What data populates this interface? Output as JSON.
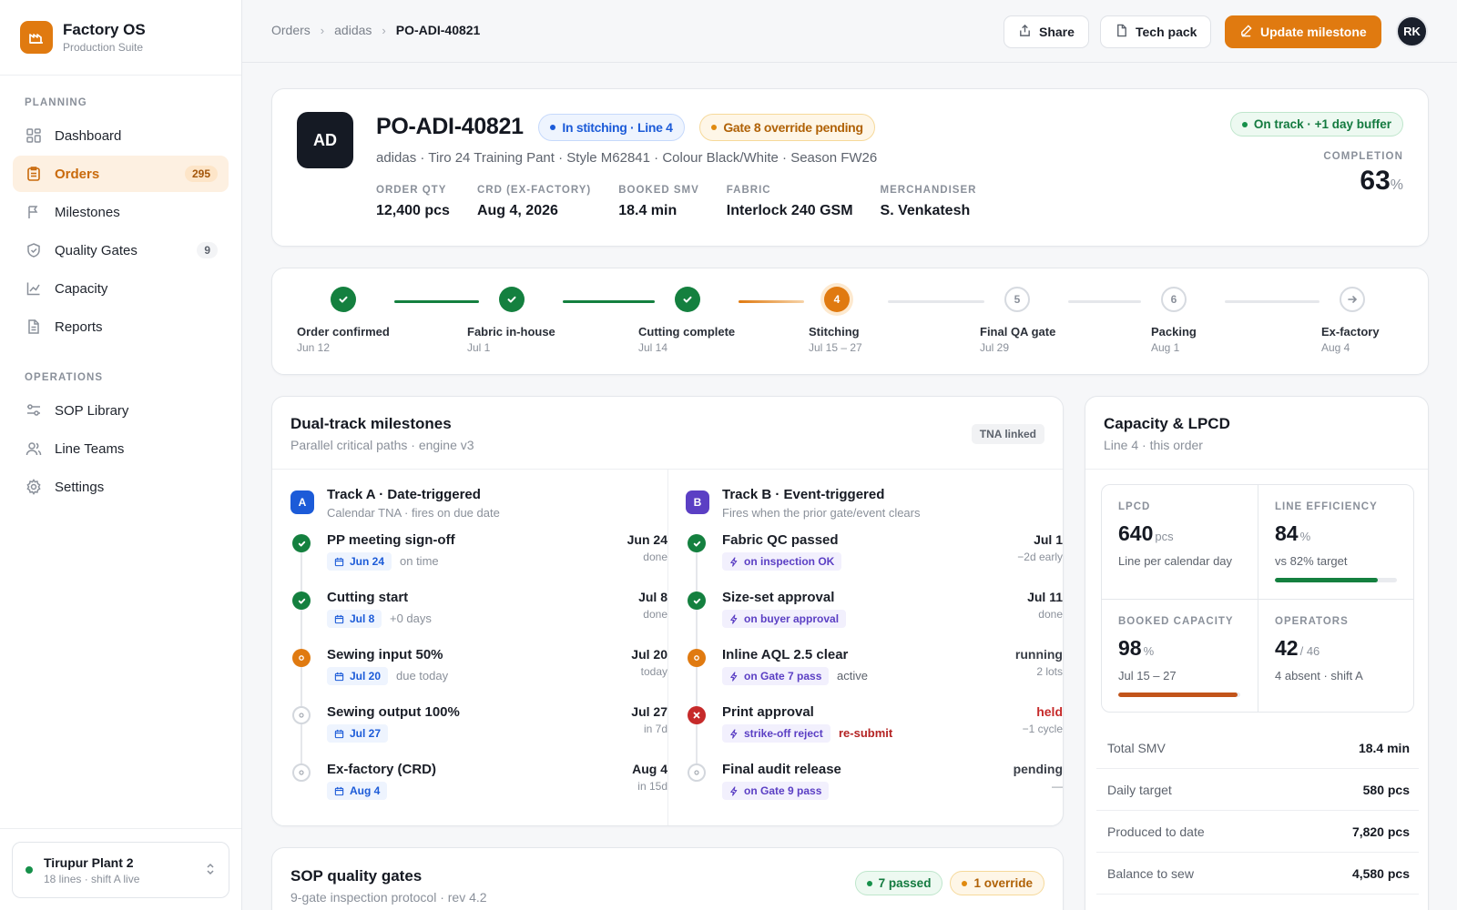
{
  "brand": {
    "name": "Factory OS",
    "subtitle": "Production Suite"
  },
  "sidebar": {
    "sections": [
      {
        "label": "PLANNING"
      },
      {
        "label": "OPERATIONS"
      }
    ],
    "planning": [
      {
        "label": "Dashboard",
        "icon": "grid-icon"
      },
      {
        "label": "Orders",
        "icon": "clipboard-icon",
        "badge": "295",
        "active": true
      },
      {
        "label": "Milestones",
        "icon": "flag-icon"
      },
      {
        "label": "Quality Gates",
        "icon": "shield-icon",
        "badge": "9"
      },
      {
        "label": "Capacity",
        "icon": "chart-icon"
      },
      {
        "label": "Reports",
        "icon": "document-icon"
      }
    ],
    "operations": [
      {
        "label": "SOP Library",
        "icon": "sliders-icon"
      },
      {
        "label": "Line Teams",
        "icon": "users-icon"
      },
      {
        "label": "Settings",
        "icon": "gear-icon"
      }
    ],
    "plant": {
      "name": "Tirupur Plant 2",
      "status": "18 lines · shift A live"
    }
  },
  "breadcrumb": [
    "Orders",
    "adidas",
    "PO-ADI-40821"
  ],
  "toolbar": {
    "share": "Share",
    "tech_pack": "Tech pack",
    "update": "Update milestone",
    "avatar": "RK"
  },
  "order": {
    "initials": "AD",
    "po": "PO-ADI-40821",
    "status_pill": "In stitching · Line 4",
    "gate_pill": "Gate 8 override pending",
    "description": "adidas · Tiro 24 Training Pant · Style M62841 · Colour Black/White · Season FW26",
    "meta": [
      {
        "label": "ORDER QTY",
        "value": "12,400 pcs"
      },
      {
        "label": "CRD (EX-FACTORY)",
        "value": "Aug 4, 2026"
      },
      {
        "label": "BOOKED SMV",
        "value": "18.4 min"
      },
      {
        "label": "FABRIC",
        "value": "Interlock 240 GSM"
      },
      {
        "label": "MERCHANDISER",
        "value": "S. Venkatesh"
      }
    ],
    "on_track": "On track · +1 day buffer",
    "completion_label": "COMPLETION",
    "completion_value": "63",
    "completion_unit": "%"
  },
  "stepper": [
    {
      "label": "Order confirmed",
      "date": "Jun 12",
      "state": "done"
    },
    {
      "label": "Fabric in-house",
      "date": "Jul 1",
      "state": "done"
    },
    {
      "label": "Cutting complete",
      "date": "Jul 14",
      "state": "done"
    },
    {
      "label": "Stitching",
      "date": "Jul 15 – 27",
      "state": "active",
      "num": "4"
    },
    {
      "label": "Final QA gate",
      "date": "Jul 29",
      "state": "todo",
      "num": "5"
    },
    {
      "label": "Packing",
      "date": "Aug 1",
      "state": "todo",
      "num": "6"
    },
    {
      "label": "Ex-factory",
      "date": "Aug 4",
      "state": "todo",
      "icon": "arrow-right-icon"
    }
  ],
  "milestones": {
    "title": "Dual-track milestones",
    "subtitle": "Parallel critical paths · engine v3",
    "tag": "TNA linked",
    "track_a": {
      "badge": "A",
      "title": "Track A · Date-triggered",
      "subtitle": "Calendar TNA · fires on due date",
      "items": [
        {
          "name": "PP meeting sign-off",
          "chip": "Jun 24",
          "note": "on time",
          "date": "Jun 24",
          "status": "done",
          "state": "done"
        },
        {
          "name": "Cutting start",
          "chip": "Jul 8",
          "note": "+0 days",
          "date": "Jul 8",
          "status": "done",
          "state": "done"
        },
        {
          "name": "Sewing input 50%",
          "chip": "Jul 20",
          "note": "due today",
          "date": "Jul 20",
          "status": "today",
          "state": "active"
        },
        {
          "name": "Sewing output 100%",
          "chip": "Jul 27",
          "note": "",
          "date": "Jul 27",
          "status": "in 7d",
          "state": "todo"
        },
        {
          "name": "Ex-factory (CRD)",
          "chip": "Aug 4",
          "note": "",
          "date": "Aug 4",
          "status": "in 15d",
          "state": "todo"
        }
      ]
    },
    "track_b": {
      "badge": "B",
      "title": "Track B · Event-triggered",
      "subtitle": "Fires when the prior gate/event clears",
      "items": [
        {
          "name": "Fabric QC passed",
          "chip": "on inspection OK",
          "note": "",
          "date": "Jul 1",
          "status": "−2d early",
          "state": "done"
        },
        {
          "name": "Size-set approval",
          "chip": "on buyer approval",
          "note": "",
          "date": "Jul 11",
          "status": "done",
          "state": "done"
        },
        {
          "name": "Inline AQL 2.5 clear",
          "chip": "on Gate 7 pass",
          "note": "active",
          "date": "running",
          "status": "2 lots",
          "state": "active"
        },
        {
          "name": "Print approval",
          "chip": "strike-off reject",
          "note": "re-submit",
          "date": "held",
          "status": "−1 cycle",
          "state": "err"
        },
        {
          "name": "Final audit release",
          "chip": "on Gate 9 pass",
          "note": "",
          "date": "pending",
          "status": "—",
          "state": "todo"
        }
      ]
    }
  },
  "sop": {
    "title": "SOP quality gates",
    "subtitle": "9-gate inspection protocol · rev 4.2",
    "passed": "7 passed",
    "override": "1 override"
  },
  "capacity": {
    "title": "Capacity & LPCD",
    "subtitle": "Line 4 · this order",
    "kpis": [
      {
        "label": "LPCD",
        "value": "640",
        "unit": "pcs",
        "sub": "Line per calendar day"
      },
      {
        "label": "LINE EFFICIENCY",
        "value": "84",
        "unit": "%",
        "sub": "vs 82% target",
        "bar": 0.84,
        "bar_color": "#14803f"
      },
      {
        "label": "BOOKED CAPACITY",
        "value": "98",
        "unit": "%",
        "sub": "Jul 15 – 27",
        "bar": 0.98,
        "bar_color": "#c2541a"
      },
      {
        "label": "OPERATORS",
        "value": "42",
        "unit": "/ 46",
        "sub": "4 absent · shift A"
      }
    ],
    "rows": [
      {
        "label": "Total SMV",
        "value": "18.4 min"
      },
      {
        "label": "Daily target",
        "value": "580 pcs"
      },
      {
        "label": "Produced to date",
        "value": "7,820 pcs"
      },
      {
        "label": "Balance to sew",
        "value": "4,580 pcs"
      }
    ]
  },
  "colors": {
    "accent": "#e07a10",
    "success": "#14803f",
    "danger": "#c62a2a",
    "info": "#1c5bd8",
    "event": "#5b3fc4"
  }
}
